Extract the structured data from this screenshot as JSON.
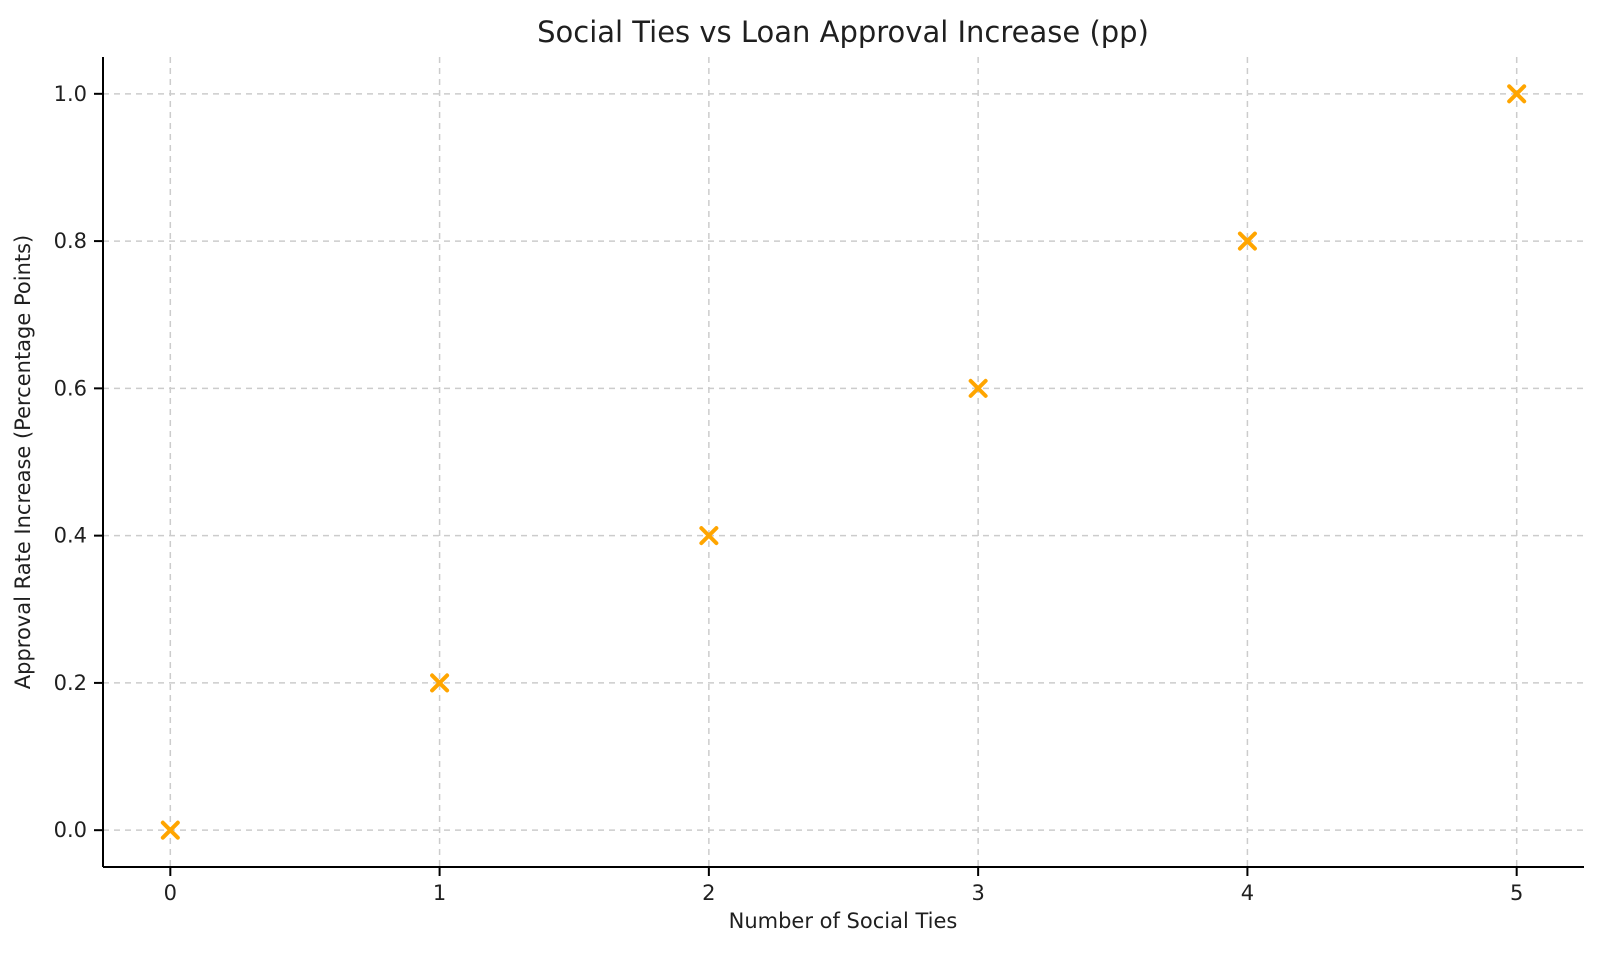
{
  "chart_data": {
    "type": "scatter",
    "title": "Social Ties vs Loan Approval Increase (pp)",
    "xlabel": "Number of Social Ties",
    "ylabel": "Approval Rate Increase (Percentage Points)",
    "x": [
      0,
      1,
      2,
      3,
      4,
      5
    ],
    "y": [
      0.0,
      0.2,
      0.4,
      0.6,
      0.8,
      1.0
    ],
    "x_ticks": [
      0,
      1,
      2,
      3,
      4,
      5
    ],
    "x_tick_labels": [
      "0",
      "1",
      "2",
      "3",
      "4",
      "5"
    ],
    "y_ticks": [
      0.0,
      0.2,
      0.4,
      0.6,
      0.8,
      1.0
    ],
    "y_tick_labels": [
      "0.0",
      "0.2",
      "0.4",
      "0.6",
      "0.8",
      "1.0"
    ],
    "xlim": [
      -0.25,
      5.25
    ],
    "ylim": [
      -0.05,
      1.05
    ],
    "grid": true,
    "legend": "none",
    "marker": "x",
    "colors": {
      "marker": "#ffa500",
      "gridline": "#cccccc",
      "spine": "#000000",
      "text": "#1f1f1f",
      "background": "#ffffff"
    }
  }
}
